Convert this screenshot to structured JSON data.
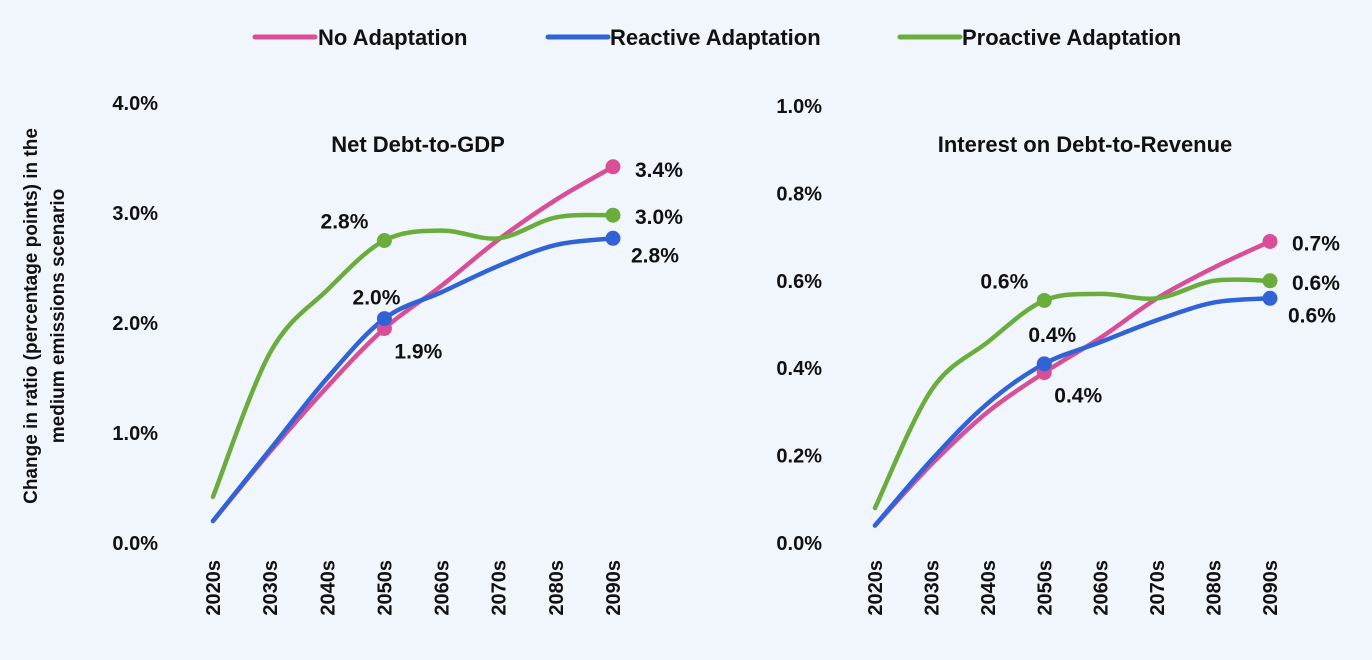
{
  "colors": {
    "background": "#f1f6fc",
    "No Adaptation": "#d94f97",
    "Reactive Adaptation": "#2f63d6",
    "Proactive Adaptation": "#6aad3d"
  },
  "legend": {
    "position": "top-center",
    "items": [
      "No Adaptation",
      "Reactive Adaptation",
      "Proactive Adaptation"
    ]
  },
  "ylabel_lines": [
    "Change in ratio (percentage points) in the",
    "medium emissions scenario"
  ],
  "chart_data": [
    {
      "type": "line",
      "title": "Net Debt-to-GDP",
      "categories": [
        "2020s",
        "2030s",
        "2040s",
        "2050s",
        "2060s",
        "2070s",
        "2080s",
        "2090s"
      ],
      "ylim": [
        0,
        4.0
      ],
      "yticks": [
        "0.0%",
        "1.0%",
        "2.0%",
        "3.0%",
        "4.0%"
      ],
      "ytick_values": [
        0,
        1,
        2,
        3,
        4
      ],
      "series": [
        {
          "name": "No Adaptation",
          "values": [
            0.2,
            0.83,
            1.42,
            1.95,
            2.34,
            2.76,
            3.12,
            3.42
          ],
          "markers": [
            {
              "index": 3,
              "label": "1.9%",
              "pos": "below-right"
            },
            {
              "index": 7,
              "label": "3.4%",
              "pos": "right-up"
            }
          ]
        },
        {
          "name": "Reactive Adaptation",
          "values": [
            0.2,
            0.85,
            1.5,
            2.04,
            2.28,
            2.52,
            2.71,
            2.77
          ],
          "markers": [
            {
              "index": 3,
              "label": "2.0%",
              "pos": "above-left"
            },
            {
              "index": 7,
              "label": "2.8%",
              "pos": "right-down"
            }
          ]
        },
        {
          "name": "Proactive Adaptation",
          "values": [
            0.42,
            1.73,
            2.3,
            2.75,
            2.84,
            2.77,
            2.96,
            2.98
          ],
          "markers": [
            {
              "index": 3,
              "label": "2.8%",
              "pos": "left-up"
            },
            {
              "index": 7,
              "label": "3.0%",
              "pos": "right"
            }
          ]
        }
      ],
      "grid": false
    },
    {
      "type": "line",
      "title": "Interest on Debt-to-Revenue",
      "categories": [
        "2020s",
        "2030s",
        "2040s",
        "2050s",
        "2060s",
        "2070s",
        "2080s",
        "2090s"
      ],
      "ylim": [
        0,
        1.0
      ],
      "yticks": [
        "0.0%",
        "0.2%",
        "0.4%",
        "0.6%",
        "0.8%",
        "1.0%"
      ],
      "ytick_values": [
        0,
        0.2,
        0.4,
        0.6,
        0.8,
        1.0
      ],
      "series": [
        {
          "name": "No Adaptation",
          "values": [
            0.04,
            0.18,
            0.3,
            0.39,
            0.47,
            0.56,
            0.63,
            0.69
          ],
          "markers": [
            {
              "index": 3,
              "label": "0.4%",
              "pos": "below-right"
            },
            {
              "index": 7,
              "label": "0.7%",
              "pos": "right"
            }
          ]
        },
        {
          "name": "Reactive Adaptation",
          "values": [
            0.04,
            0.19,
            0.32,
            0.41,
            0.46,
            0.51,
            0.55,
            0.56
          ],
          "markers": [
            {
              "index": 3,
              "label": "0.4%",
              "pos": "above"
            },
            {
              "index": 7,
              "label": "0.6%",
              "pos": "right-down"
            }
          ]
        },
        {
          "name": "Proactive Adaptation",
          "values": [
            0.08,
            0.35,
            0.46,
            0.555,
            0.57,
            0.56,
            0.6,
            0.6
          ],
          "markers": [
            {
              "index": 3,
              "label": "0.6%",
              "pos": "left-up"
            },
            {
              "index": 7,
              "label": "0.6%",
              "pos": "right"
            }
          ]
        }
      ],
      "grid": false
    }
  ]
}
